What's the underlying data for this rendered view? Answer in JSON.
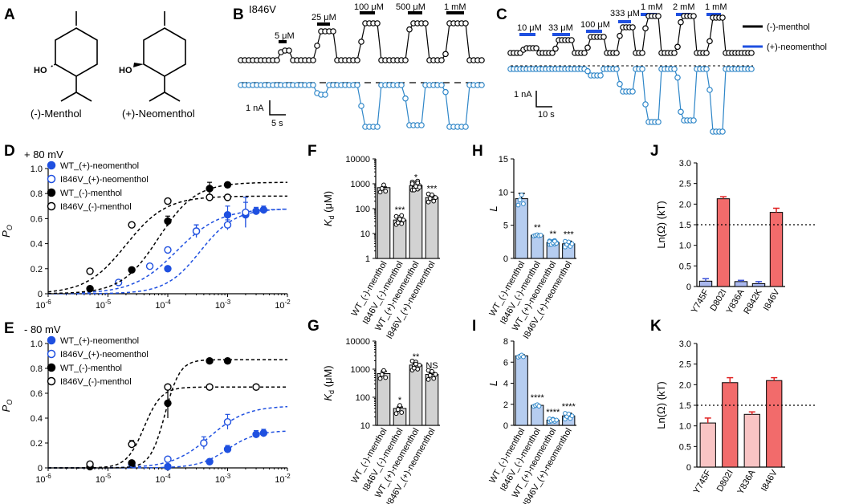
{
  "colors": {
    "wt": "#1f50e0",
    "mut": "#2e86c8",
    "black": "#000000",
    "bar_gray": "#d2d2d2",
    "bar_blue": "#b6cdf0",
    "bar_red": "#f26b6b",
    "bar_pink": "#f9c4c4",
    "bar_lav": "#aab8ee"
  },
  "panels": {
    "A": "A",
    "B": "B",
    "C": "C",
    "D": "D",
    "E": "E",
    "F": "F",
    "G": "G",
    "H": "H",
    "I": "I",
    "J": "J",
    "K": "K"
  },
  "panelA": {
    "left_label": "(-)-Menthol",
    "right_label": "(+)-Neomenthol",
    "ho": "HO"
  },
  "panelB": {
    "mutant": "I846V",
    "concs": [
      "5 μM",
      "25 μM",
      "100 μM",
      "500 μM",
      "1 mM"
    ],
    "scale_y": "1 nA",
    "scale_x": "5 s"
  },
  "panelC": {
    "concs": [
      "10 μM",
      "33 μM",
      "100 μM",
      "333 μM",
      "1 mM",
      "2 mM",
      "1 mM"
    ],
    "scale_y": "1 nA",
    "scale_x": "10 s",
    "legend": [
      "(-)-menthol",
      "(+)-neomenthol"
    ]
  },
  "chart_data": [
    {
      "panel": "D",
      "type": "scatter",
      "title": "+ 80 mV",
      "xlabel": "",
      "ylabel": "Po",
      "xscale": "log",
      "xlim": [
        1e-06,
        0.01
      ],
      "ylim": [
        0,
        1.0
      ],
      "yticks": [
        "0",
        "0.2",
        "0.4",
        "0.6",
        "0.8",
        "1.0"
      ],
      "xticks": [
        "10^-6",
        "10^-5",
        "10^-4",
        "10^-3",
        "10^-2"
      ],
      "series": [
        {
          "name": "WT_(+)-neomenthol",
          "x": [
            0.0001,
            0.0003,
            0.001,
            0.002,
            0.003,
            0.004
          ],
          "y": [
            0.2,
            0.5,
            0.63,
            0.63,
            0.66,
            0.67
          ],
          "err": [
            0.02,
            0.05,
            0.07,
            0.1,
            0.03,
            0.03
          ],
          "fit": {
            "top": 0.68,
            "ec50": 0.00035,
            "n": 1.5
          }
        },
        {
          "name": "I846V_(+)-neomenthol",
          "x": [
            1.5e-05,
            5e-05,
            0.0001,
            0.0003,
            0.001,
            0.002
          ],
          "y": [
            0.09,
            0.22,
            0.35,
            0.5,
            0.55,
            0.65
          ],
          "err": [
            0.01,
            0.02,
            0.02,
            0.05,
            0.04,
            0.12
          ],
          "fit": {
            "top": 0.68,
            "ec50": 0.00014,
            "n": 1.2
          }
        },
        {
          "name": "WT_(-)-menthol",
          "x": [
            5e-06,
            2.5e-05,
            0.0001,
            0.0005,
            0.001
          ],
          "y": [
            0.04,
            0.19,
            0.58,
            0.84,
            0.87
          ],
          "err": [
            0.01,
            0.02,
            0.04,
            0.05,
            0.02
          ],
          "fit": {
            "top": 0.89,
            "ec50": 7e-05,
            "n": 1.4
          }
        },
        {
          "name": "I846V_(-)-menthol",
          "x": [
            5e-06,
            2.5e-05,
            0.0001,
            0.0005,
            0.001
          ],
          "y": [
            0.18,
            0.55,
            0.74,
            0.77,
            0.77
          ],
          "err": [
            0.01,
            0.02,
            0.02,
            0.02,
            0.01
          ],
          "fit": {
            "top": 0.78,
            "ec50": 2e-05,
            "n": 1.3
          }
        }
      ]
    },
    {
      "panel": "E",
      "type": "scatter",
      "title": "- 80 mV",
      "xlabel": "",
      "ylabel": "Po",
      "xscale": "log",
      "xlim": [
        1e-06,
        0.01
      ],
      "ylim": [
        0,
        1.0
      ],
      "yticks": [
        "0",
        "0.2",
        "0.4",
        "0.6",
        "0.8",
        "1.0"
      ],
      "xticks": [
        "10^-6",
        "10^-5",
        "10^-4",
        "10^-3",
        "10^-2"
      ],
      "series": [
        {
          "name": "WT_(+)-neomenthol",
          "x": [
            0.0001,
            0.0005,
            0.001,
            0.003,
            0.004
          ],
          "y": [
            0.01,
            0.05,
            0.15,
            0.27,
            0.28
          ],
          "err": [
            0.005,
            0.02,
            0.03,
            0.03,
            0.03
          ],
          "fit": {
            "top": 0.3,
            "ec50": 0.001,
            "n": 1.8
          }
        },
        {
          "name": "I846V_(+)-neomenthol",
          "x": [
            2.5e-05,
            0.0001,
            0.0004,
            0.001
          ],
          "y": [
            0.03,
            0.07,
            0.2,
            0.37
          ],
          "err": [
            0.005,
            0.01,
            0.05,
            0.06
          ],
          "fit": {
            "top": 0.5,
            "ec50": 0.0005,
            "n": 1.4
          }
        },
        {
          "name": "WT_(-)-menthol",
          "x": [
            5e-06,
            2.5e-05,
            0.0001,
            0.0005,
            0.001
          ],
          "y": [
            0.01,
            0.04,
            0.52,
            0.86,
            0.86
          ],
          "err": [
            0.005,
            0.01,
            0.12,
            0.02,
            0.02
          ],
          "fit": {
            "top": 0.87,
            "ec50": 9e-05,
            "n": 3.5
          }
        },
        {
          "name": "I846V_(-)-menthol",
          "x": [
            5e-06,
            2.5e-05,
            0.0001,
            0.0005,
            0.003
          ],
          "y": [
            0.03,
            0.19,
            0.65,
            0.65,
            0.65
          ],
          "err": [
            0.005,
            0.03,
            0.02,
            0.02,
            0.01
          ],
          "fit": {
            "top": 0.65,
            "ec50": 4e-05,
            "n": 3.0
          }
        }
      ]
    },
    {
      "panel": "F",
      "type": "bar",
      "ylabel": "Kd (μM)",
      "yscale": "log",
      "ylim": [
        1,
        10000
      ],
      "yticks": [
        "1",
        "10",
        "100",
        "1000",
        "10000"
      ],
      "categories": [
        "WT_(-)-menthol",
        "I846V_(-)-menthol",
        "WT_(+)-neomenthol",
        "I846V_(+)-neomenthol"
      ],
      "values": [
        700,
        35,
        850,
        280
      ],
      "err": [
        40,
        12,
        130,
        60
      ],
      "sig": [
        "",
        "***",
        "*",
        "***"
      ]
    },
    {
      "panel": "G",
      "type": "bar",
      "ylabel": "Kd (μM)",
      "yscale": "log",
      "ylim": [
        10,
        10000
      ],
      "yticks": [
        "10",
        "100",
        "1000",
        "10000"
      ],
      "categories": [
        "WT_(-)-menthol",
        "I846V_(-)-menthol",
        "WT_(+)-neomenthol",
        "I846V_(+)-neomenthol"
      ],
      "values": [
        700,
        40,
        1400,
        650
      ],
      "err": [
        150,
        5,
        160,
        110
      ],
      "sig": [
        "",
        "*",
        "**",
        "NS"
      ]
    },
    {
      "panel": "H",
      "type": "bar",
      "ylabel": "L",
      "ylim": [
        0,
        15
      ],
      "yticks": [
        "0",
        "5",
        "10",
        "15"
      ],
      "categories": [
        "WT_(-)-menthol",
        "I846V_(-)-menthol",
        "WT_(+)-neomenthol",
        "I846V_(+)-neomenthol"
      ],
      "values": [
        9.0,
        3.5,
        2.4,
        2.2
      ],
      "err": [
        0.8,
        0.1,
        0.25,
        0.4
      ],
      "sig": [
        "",
        "**",
        "**",
        "***"
      ]
    },
    {
      "panel": "I",
      "type": "bar",
      "ylabel": "L",
      "ylim": [
        0,
        8
      ],
      "yticks": [
        "0",
        "2",
        "4",
        "6",
        "8"
      ],
      "categories": [
        "WT_(-)-menthol",
        "I846V_(-)-menthol",
        "WT_(+)-neomenthol",
        "I846V_(+)-neomenthol"
      ],
      "values": [
        6.6,
        1.9,
        0.5,
        0.9
      ],
      "err": [
        0.1,
        0.08,
        0.12,
        0.25
      ],
      "sig": [
        "",
        "****",
        "****",
        "****"
      ]
    },
    {
      "panel": "J",
      "type": "bar",
      "ylabel": "Ln(Ω) (kT)",
      "ylim": [
        0,
        3.0
      ],
      "yticks": [
        "0",
        "0.5",
        "1.0",
        "1.5",
        "2.0",
        "2.5",
        "3.0"
      ],
      "categories": [
        "Y745F",
        "D802I",
        "Y836A",
        "R842K",
        "I846V"
      ],
      "values": [
        0.13,
        2.13,
        0.12,
        0.07,
        1.8
      ],
      "err": [
        0.06,
        0.05,
        0.03,
        0.05,
        0.1
      ],
      "threshold": 1.5
    },
    {
      "panel": "K",
      "type": "bar",
      "ylabel": "Ln(Ω) (kT)",
      "ylim": [
        0,
        3.0
      ],
      "yticks": [
        "0",
        "0.5",
        "1.0",
        "1.5",
        "2.0",
        "2.5",
        "3.0"
      ],
      "categories": [
        "Y745F",
        "D802I",
        "Y836A",
        "I846V"
      ],
      "values": [
        1.07,
        2.05,
        1.28,
        2.1
      ],
      "err": [
        0.12,
        0.12,
        0.06,
        0.07
      ],
      "threshold": 1.5
    }
  ]
}
